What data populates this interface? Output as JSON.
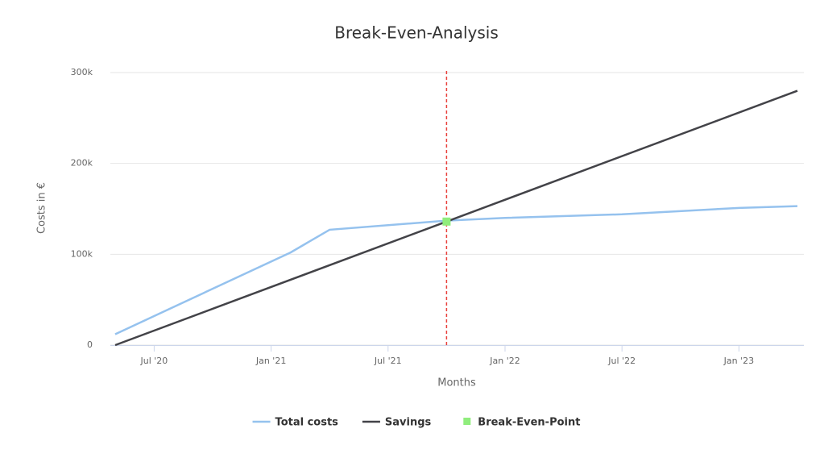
{
  "chart_data": {
    "type": "line",
    "title": "Break-Even-Analysis",
    "x_label": "Months",
    "y_label": "Costs in €",
    "xlim": [
      "2020-05",
      "2023-04"
    ],
    "xticks": [
      {
        "value": "2020-07",
        "label": "Jul '20"
      },
      {
        "value": "2021-01",
        "label": "Jan '21"
      },
      {
        "value": "2021-07",
        "label": "Jul '21"
      },
      {
        "value": "2022-01",
        "label": "Jan '22"
      },
      {
        "value": "2022-07",
        "label": "Jul '22"
      },
      {
        "value": "2023-01",
        "label": "Jan '23"
      }
    ],
    "ylim": [
      0,
      300000
    ],
    "yticks": [
      0,
      {
        "value": 100000,
        "label": "100k"
      },
      {
        "value": 200000,
        "label": "200k"
      },
      {
        "value": 300000,
        "label": "300k"
      }
    ],
    "grid": true,
    "legend": "bottom",
    "plot_line": {
      "x": "2021-10",
      "color": "#e8413c"
    },
    "series": [
      {
        "name": "Total costs",
        "type": "line",
        "color": "#95c2ee",
        "x": [
          "2020-05",
          "2021-02",
          "2021-04",
          "2021-10",
          "2022-01",
          "2022-07",
          "2023-01",
          "2023-04"
        ],
        "values": [
          12000,
          102000,
          127000,
          137000,
          140000,
          144000,
          151000,
          153000
        ]
      },
      {
        "name": "Savings",
        "type": "line",
        "color": "#434348",
        "x": [
          "2020-05",
          "2021-10",
          "2023-04"
        ],
        "values": [
          0,
          136000,
          280000
        ]
      },
      {
        "name": "Break-Even-Point",
        "type": "scatter",
        "color": "#90ed7d",
        "x": [
          "2021-10"
        ],
        "values": [
          136000
        ]
      }
    ]
  }
}
